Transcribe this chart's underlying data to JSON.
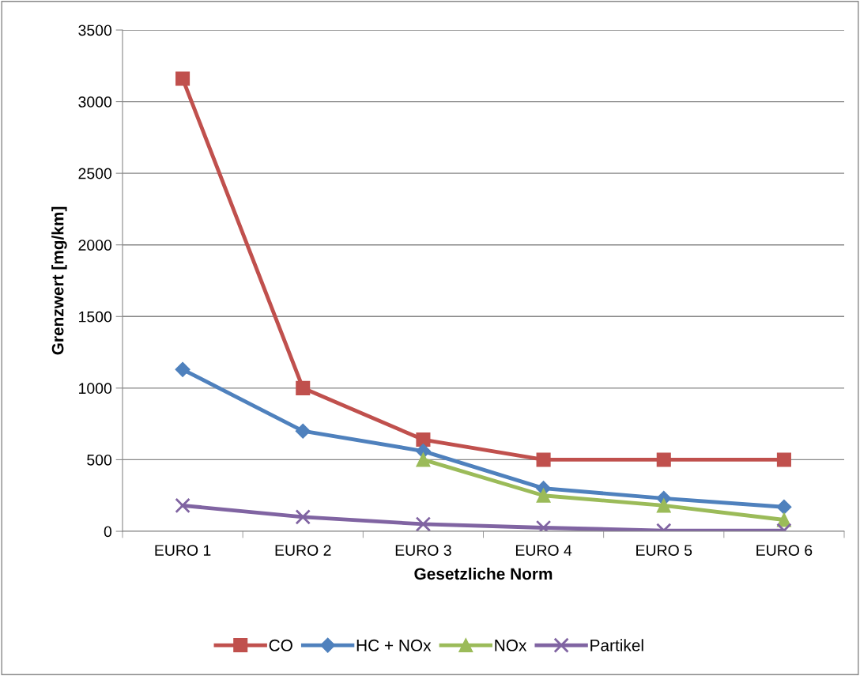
{
  "chart_data": {
    "type": "line",
    "xlabel": "Gesetzliche Norm",
    "ylabel": "Grenzwert [mg/km]",
    "categories": [
      "EURO 1",
      "EURO 2",
      "EURO 3",
      "EURO 4",
      "EURO 5",
      "EURO 6"
    ],
    "series": [
      {
        "name": "CO",
        "color": "#c0504d",
        "marker": "square",
        "values": [
          3160,
          1000,
          640,
          500,
          500,
          500
        ]
      },
      {
        "name": "HC + NOx",
        "color": "#4f81bd",
        "marker": "diamond",
        "values": [
          1130,
          700,
          560,
          300,
          230,
          170
        ]
      },
      {
        "name": "NOx",
        "color": "#9bbb59",
        "marker": "triangle",
        "values": [
          null,
          null,
          500,
          250,
          180,
          80
        ]
      },
      {
        "name": "Partikel",
        "color": "#8064a2",
        "marker": "cross",
        "values": [
          180,
          100,
          50,
          25,
          5,
          5
        ]
      }
    ],
    "ylim": [
      0,
      3500
    ],
    "yticks": [
      0,
      500,
      1000,
      1500,
      2000,
      2500,
      3000,
      3500
    ],
    "grid": "y",
    "legend": "bottom",
    "line_style": "solid"
  }
}
